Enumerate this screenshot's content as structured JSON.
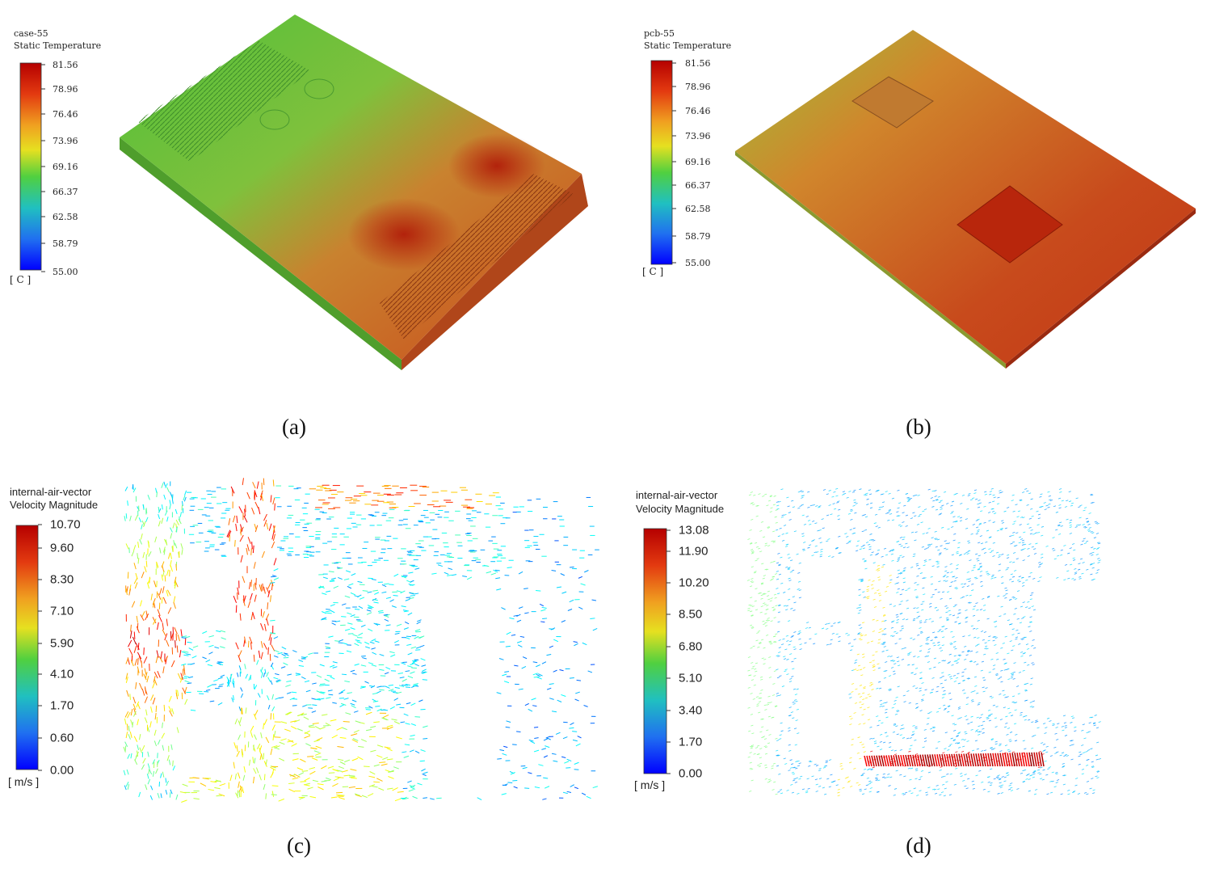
{
  "panels": [
    {
      "title_lines": [
        "case-55",
        "Static Temperature"
      ],
      "ticks": [
        "81.56",
        "78.96",
        "76.46",
        "73.96",
        "69.16",
        "66.37",
        "62.58",
        "58.79",
        "55.00"
      ],
      "unit": "[ C ]",
      "caption": "(a)"
    },
    {
      "title_lines": [
        "pcb-55",
        "Static Temperature"
      ],
      "ticks": [
        "81.56",
        "78.96",
        "76.46",
        "73.96",
        "69.16",
        "66.37",
        "62.58",
        "58.79",
        "55.00"
      ],
      "unit": "[ C ]",
      "caption": "(b)"
    },
    {
      "title_lines": [
        "internal-air-vector",
        "Velocity Magnitude"
      ],
      "ticks": [
        "10.70",
        "9.60",
        "8.30",
        "7.10",
        "5.90",
        "4.10",
        "1.70",
        "0.60",
        "0.00"
      ],
      "unit": "[ m/s ]",
      "caption": "(c)"
    },
    {
      "title_lines": [
        "internal-air-vector",
        "Velocity Magnitude"
      ],
      "ticks": [
        "13.08",
        "11.90",
        "10.20",
        "8.50",
        "6.80",
        "5.10",
        "3.40",
        "1.70",
        "0.00"
      ],
      "unit": "[ m/s ]",
      "caption": "(d)"
    }
  ]
}
